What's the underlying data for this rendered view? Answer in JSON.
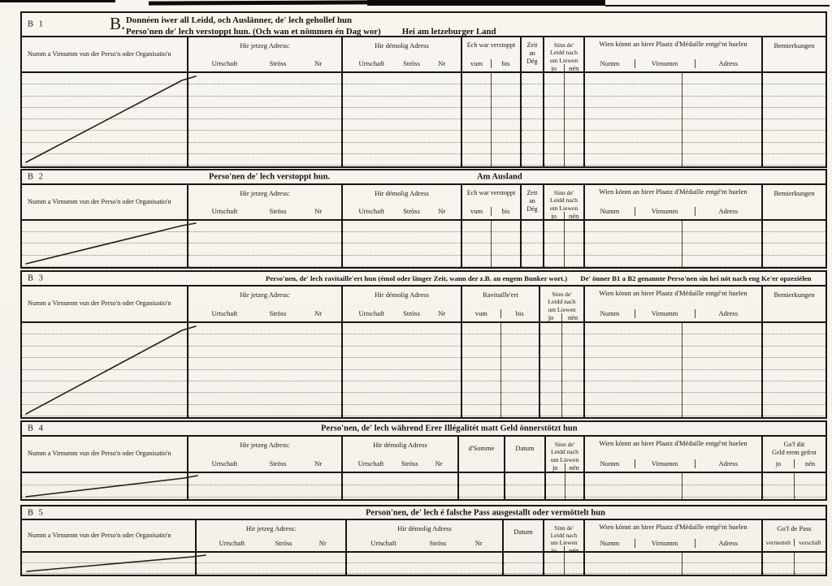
{
  "page": {
    "paper_color": "#f7f5ee",
    "ink_color": "#1a1710"
  },
  "shared": {
    "name_col": "Numm a Virnumm vun der Perso'n oder Organisatio'n",
    "current_address": "Hir jetzeg Adress:",
    "former_address": "Hir démolig Adress",
    "city": "Urtschaft",
    "street": "Ströss",
    "nr": "Nr",
    "from": "vum",
    "to": "bis",
    "hidden": "Ech war verstoppt",
    "days": "Zeit\nan\nDég",
    "alive": "Sinn de'\nLeidd nach\num Liewen",
    "yes": "jo",
    "no": "nén",
    "medal": "Wien könnt an hirer Plaatz d'Médaille entgé'nt huelen",
    "medal_name": "Numm",
    "medal_firstname": "Virnumm",
    "medal_address": "Adress",
    "remarks": "Bemierkungen"
  },
  "b1": {
    "id": "B 1",
    "letter": "B.",
    "heading_line1": "Donnéen iwer all Leidd, och Auslänner, de' lech gehollef hun",
    "heading_line2": "Perso'nen de' lech verstoppt hun. (Och wan et nömmen én Dag wor)",
    "heading_region": "Hei am letzeburger Land"
  },
  "b2": {
    "id": "B 2",
    "title": "Perso'nen de' lech verstoppt hun.",
    "title_region": "Am Ausland"
  },
  "b3": {
    "id": "B 3",
    "title": "Perso'nen, de' lech ravitaille'ert hun (émol oder länger Zeit, wann der z.B. an engem Bunker wort.)",
    "title_note": "De' önner B1 a B2 genannte Perso'nen sin hei nöt nach eng Ke'er opzeziélen",
    "supplied": "Ravitaille'ert"
  },
  "b4": {
    "id": "B 4",
    "title": "Perso'nen, de' lech während Erer Illégalitét matt Geld önnerstötzt hun",
    "sum": "d'Somme",
    "date": "Datum",
    "money_returned": "Go'f dät\nGeld erem gefrot"
  },
  "b5": {
    "id": "B 5",
    "title": "Person'nen, de' lech é falsche Pass ausgestallt oder vermöttelt hun",
    "date": "Datum",
    "pass": "Go'f de Pass",
    "pass_opt1": "vermettelt",
    "pass_opt2": "verschäft"
  }
}
